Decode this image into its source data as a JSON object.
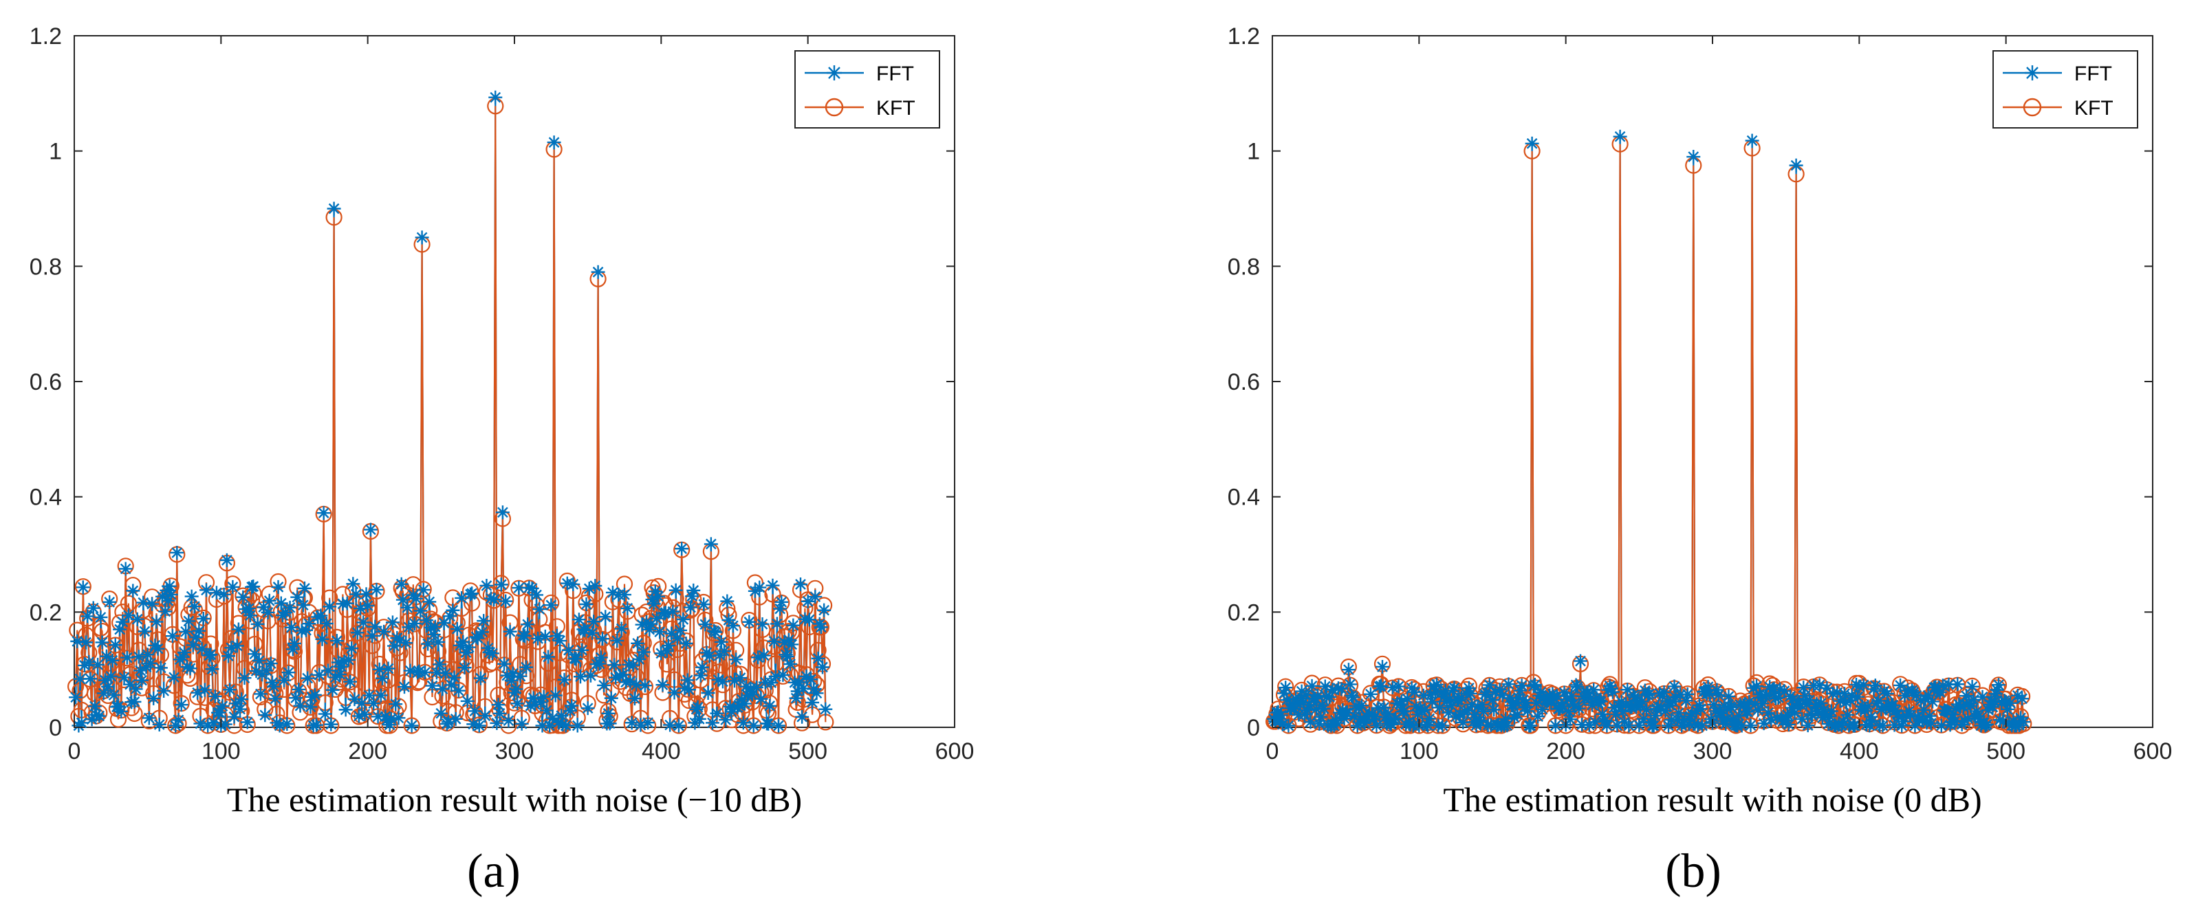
{
  "chart_data": [
    {
      "type": "line",
      "panel_label": "(a)",
      "xlabel": "The estimation result with noise (−10 dB)",
      "ylabel": "",
      "xlim": [
        0,
        600
      ],
      "ylim": [
        0,
        1.2
      ],
      "xticks": [
        "0",
        "100",
        "200",
        "300",
        "400",
        "500",
        "600"
      ],
      "yticks": [
        "0",
        "0.2",
        "0.4",
        "0.6",
        "0.8",
        "1",
        "1.2"
      ],
      "legend": {
        "position": "top-right",
        "entries": [
          "FFT",
          "KFT"
        ]
      },
      "n_points": 512,
      "noise_level": 0.12,
      "noise_amplitude": 0.13,
      "seed": 7,
      "colors": {
        "FFT": "#0072BD",
        "KFT": "#D95319"
      },
      "peaks": [
        {
          "x": 170,
          "fft": 0.372,
          "kft": 0.37
        },
        {
          "x": 177,
          "fft": 0.9,
          "kft": 0.885
        },
        {
          "x": 202,
          "fft": 0.343,
          "kft": 0.34
        },
        {
          "x": 237,
          "fft": 0.85,
          "kft": 0.838
        },
        {
          "x": 287,
          "fft": 1.093,
          "kft": 1.078
        },
        {
          "x": 292,
          "fft": 0.373,
          "kft": 0.362
        },
        {
          "x": 327,
          "fft": 1.015,
          "kft": 1.003
        },
        {
          "x": 357,
          "fft": 0.79,
          "kft": 0.778
        },
        {
          "x": 35,
          "fft": 0.275,
          "kft": 0.28
        },
        {
          "x": 70,
          "fft": 0.303,
          "kft": 0.3
        },
        {
          "x": 104,
          "fft": 0.29,
          "kft": 0.285
        },
        {
          "x": 414,
          "fft": 0.31,
          "kft": 0.308
        },
        {
          "x": 434,
          "fft": 0.318,
          "kft": 0.305
        }
      ]
    },
    {
      "type": "line",
      "panel_label": "(b)",
      "xlabel": "The estimation result with noise (0 dB)",
      "ylabel": "",
      "xlim": [
        0,
        600
      ],
      "ylim": [
        0,
        1.2
      ],
      "xticks": [
        "0",
        "100",
        "200",
        "300",
        "400",
        "500",
        "600"
      ],
      "yticks": [
        "0",
        "0.2",
        "0.4",
        "0.6",
        "0.8",
        "1",
        "1.2"
      ],
      "legend": {
        "position": "top-right",
        "entries": [
          "FFT",
          "KFT"
        ]
      },
      "n_points": 512,
      "noise_level": 0.035,
      "noise_amplitude": 0.04,
      "seed": 21,
      "colors": {
        "FFT": "#0072BD",
        "KFT": "#D95319"
      },
      "peaks": [
        {
          "x": 177,
          "fft": 1.013,
          "kft": 1.0
        },
        {
          "x": 237,
          "fft": 1.025,
          "kft": 1.012
        },
        {
          "x": 287,
          "fft": 0.99,
          "kft": 0.975
        },
        {
          "x": 327,
          "fft": 1.018,
          "kft": 1.005
        },
        {
          "x": 357,
          "fft": 0.975,
          "kft": 0.96
        },
        {
          "x": 52,
          "fft": 0.1,
          "kft": 0.105
        },
        {
          "x": 75,
          "fft": 0.105,
          "kft": 0.11
        },
        {
          "x": 210,
          "fft": 0.115,
          "kft": 0.11
        }
      ]
    }
  ]
}
